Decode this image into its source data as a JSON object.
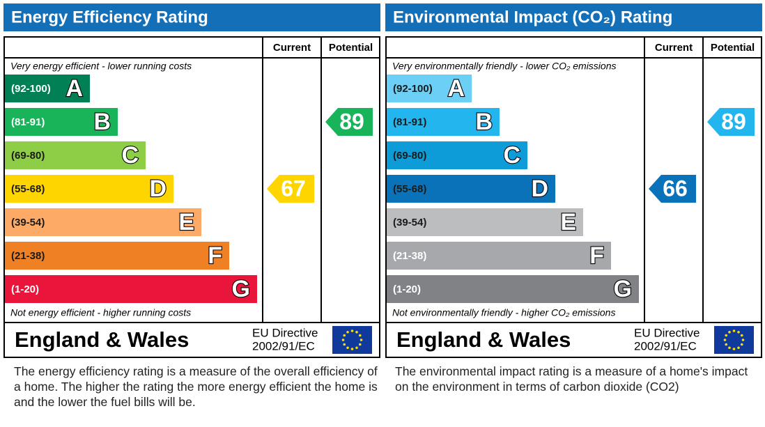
{
  "panels": [
    {
      "title": "Energy Efficiency Rating",
      "current_label": "Current",
      "potential_label": "Potential",
      "top_note": "Very energy efficient - lower running costs",
      "bottom_note": "Not energy efficient - higher running costs",
      "bands": [
        {
          "range": "(92-100)",
          "letter": "A",
          "color": "#008054",
          "text_color": "#ffffff"
        },
        {
          "range": "(81-91)",
          "letter": "B",
          "color": "#19b459",
          "text_color": "#ffffff"
        },
        {
          "range": "(69-80)",
          "letter": "C",
          "color": "#8dce46",
          "text_color": "#1a1a1a"
        },
        {
          "range": "(55-68)",
          "letter": "D",
          "color": "#ffd500",
          "text_color": "#1a1a1a"
        },
        {
          "range": "(39-54)",
          "letter": "E",
          "color": "#fcaa65",
          "text_color": "#1a1a1a"
        },
        {
          "range": "(21-38)",
          "letter": "F",
          "color": "#ef8023",
          "text_color": "#1a1a1a"
        },
        {
          "range": "(1-20)",
          "letter": "G",
          "color": "#e9153b",
          "text_color": "#ffffff"
        }
      ],
      "current": 67,
      "potential": 89,
      "region": "England & Wales",
      "directive": [
        "EU Directive",
        "2002/91/EC"
      ],
      "description": "The energy efficiency rating is a measure of the overall efficiency of a home.  The higher the rating the more energy efficient the home is and the lower the fuel bills will be."
    },
    {
      "title": "Environmental Impact (CO₂) Rating",
      "current_label": "Current",
      "potential_label": "Potential",
      "top_note": "Very environmentally friendly - lower CO₂ emissions",
      "bottom_note": "Not environmentally friendly - higher CO₂ emissions",
      "bands": [
        {
          "range": "(92-100)",
          "letter": "A",
          "color": "#6ccff6",
          "text_color": "#1a1a1a"
        },
        {
          "range": "(81-91)",
          "letter": "B",
          "color": "#22b5ee",
          "text_color": "#1a1a1a"
        },
        {
          "range": "(69-80)",
          "letter": "C",
          "color": "#0e9cd8",
          "text_color": "#1a1a1a"
        },
        {
          "range": "(55-68)",
          "letter": "D",
          "color": "#0a72b9",
          "text_color": "#1a1a1a"
        },
        {
          "range": "(39-54)",
          "letter": "E",
          "color": "#bbbdbf",
          "text_color": "#1a1a1a"
        },
        {
          "range": "(21-38)",
          "letter": "F",
          "color": "#a6a8ab",
          "text_color": "#ffffff"
        },
        {
          "range": "(1-20)",
          "letter": "G",
          "color": "#808285",
          "text_color": "#ffffff"
        }
      ],
      "current": 66,
      "potential": 89,
      "region": "England & Wales",
      "directive": [
        "EU Directive",
        "2002/91/EC"
      ],
      "description": "The environmental impact rating is a measure of a home's impact on the environment in terms of carbon dioxide (CO2)"
    }
  ]
}
